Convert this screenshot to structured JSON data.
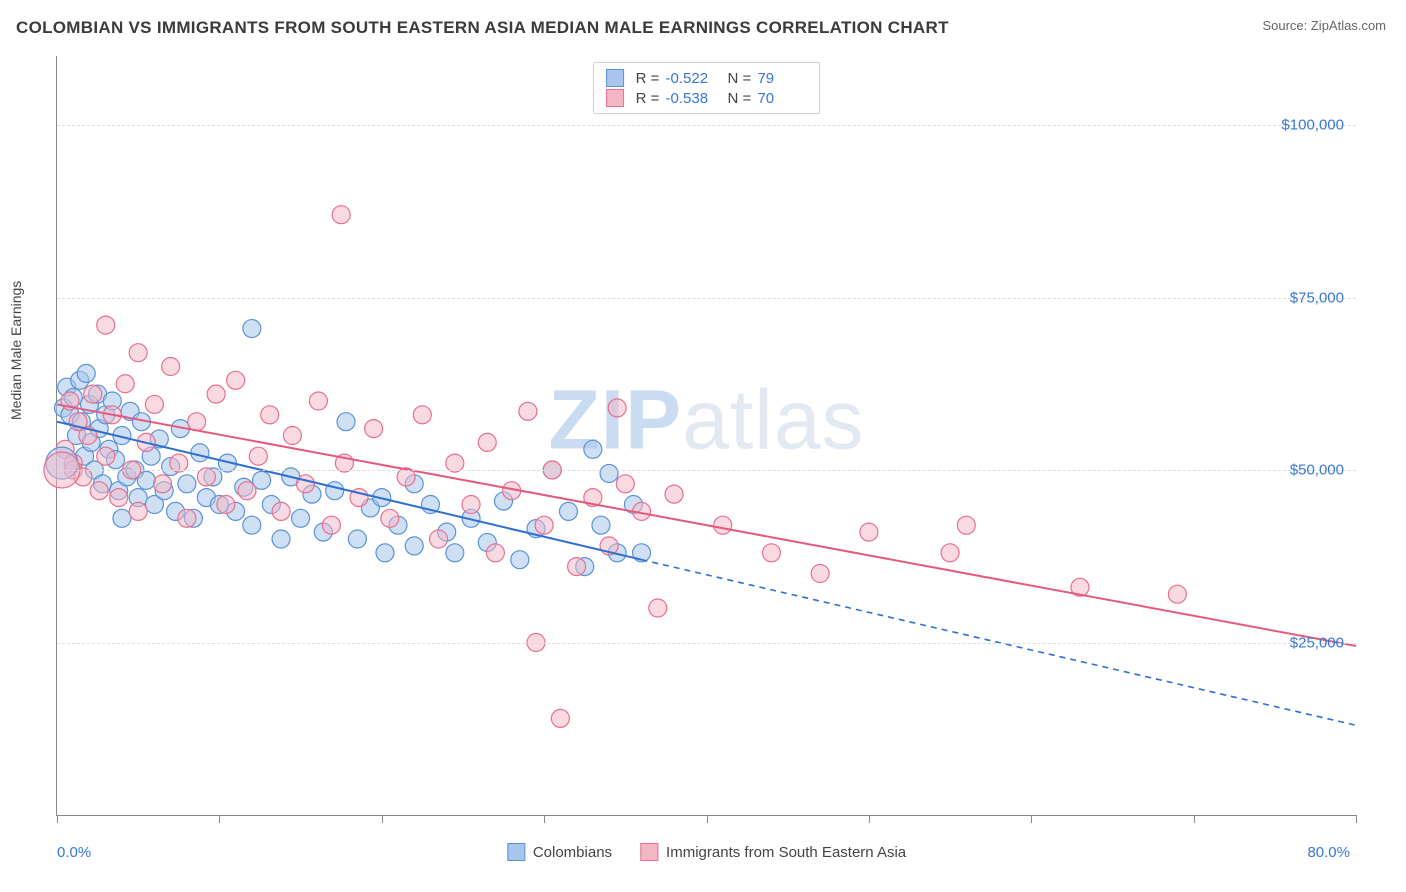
{
  "title": "COLOMBIAN VS IMMIGRANTS FROM SOUTH EASTERN ASIA MEDIAN MALE EARNINGS CORRELATION CHART",
  "source": "Source: ZipAtlas.com",
  "ylabel": "Median Male Earnings",
  "watermark_a": "ZIP",
  "watermark_b": "atlas",
  "chart": {
    "type": "scatter",
    "background_color": "#ffffff",
    "grid_color": "#dddddd",
    "axis_color": "#888888",
    "label_color": "#3876d6",
    "text_color": "#444444",
    "xlim": [
      0,
      80
    ],
    "ylim": [
      0,
      110000
    ],
    "xtick_positions": [
      0,
      10,
      20,
      30,
      40,
      50,
      60,
      70,
      80
    ],
    "xtick_labels_shown": {
      "0": "0.0%",
      "80": "80.0%"
    },
    "ytick_positions": [
      25000,
      50000,
      75000,
      100000
    ],
    "ytick_labels": [
      "$25,000",
      "$50,000",
      "$75,000",
      "$100,000"
    ],
    "marker_radius": 9,
    "marker_stroke_width": 1.2,
    "line_width": 2,
    "dash_pattern": "6 5"
  },
  "series": [
    {
      "key": "colombians",
      "label": "Colombians",
      "fill": "#a8c6ec",
      "stroke": "#5a93d8",
      "fill_opacity": 0.55,
      "line_color": "#2f6fd0",
      "R": "-0.522",
      "N": "79",
      "trend": {
        "x1": 0,
        "y1": 57000,
        "x2": 36,
        "y2": 37000,
        "x2_dash": 80,
        "y2_dash": 13000
      },
      "points": [
        [
          0.4,
          59000
        ],
        [
          0.6,
          62000
        ],
        [
          0.8,
          58000
        ],
        [
          1.0,
          60500
        ],
        [
          1.2,
          55000
        ],
        [
          1.4,
          63000
        ],
        [
          1.5,
          57000
        ],
        [
          1.7,
          52000
        ],
        [
          1.8,
          64000
        ],
        [
          2.0,
          59500
        ],
        [
          2.1,
          54000
        ],
        [
          2.3,
          50000
        ],
        [
          2.5,
          61000
        ],
        [
          2.6,
          56000
        ],
        [
          2.8,
          48000
        ],
        [
          3.0,
          58000
        ],
        [
          3.2,
          53000
        ],
        [
          3.4,
          60000
        ],
        [
          3.6,
          51500
        ],
        [
          3.8,
          47000
        ],
        [
          4.0,
          55000
        ],
        [
          4.3,
          49000
        ],
        [
          4.5,
          58500
        ],
        [
          4.8,
          50000
        ],
        [
          5.0,
          46000
        ],
        [
          5.2,
          57000
        ],
        [
          5.5,
          48500
        ],
        [
          5.8,
          52000
        ],
        [
          6.0,
          45000
        ],
        [
          6.3,
          54500
        ],
        [
          6.6,
          47000
        ],
        [
          7.0,
          50500
        ],
        [
          7.3,
          44000
        ],
        [
          7.6,
          56000
        ],
        [
          8.0,
          48000
        ],
        [
          8.4,
          43000
        ],
        [
          8.8,
          52500
        ],
        [
          9.2,
          46000
        ],
        [
          9.6,
          49000
        ],
        [
          10.0,
          45000
        ],
        [
          10.5,
          51000
        ],
        [
          11.0,
          44000
        ],
        [
          11.5,
          47500
        ],
        [
          12.0,
          70500
        ],
        [
          12.0,
          42000
        ],
        [
          12.6,
          48500
        ],
        [
          13.2,
          45000
        ],
        [
          13.8,
          40000
        ],
        [
          14.4,
          49000
        ],
        [
          15.0,
          43000
        ],
        [
          15.7,
          46500
        ],
        [
          16.4,
          41000
        ],
        [
          17.1,
          47000
        ],
        [
          17.8,
          57000
        ],
        [
          18.5,
          40000
        ],
        [
          19.3,
          44500
        ],
        [
          20.0,
          46000
        ],
        [
          20.2,
          38000
        ],
        [
          21.0,
          42000
        ],
        [
          22.0,
          48000
        ],
        [
          22.0,
          39000
        ],
        [
          23.0,
          45000
        ],
        [
          24.0,
          41000
        ],
        [
          24.5,
          38000
        ],
        [
          25.5,
          43000
        ],
        [
          26.5,
          39500
        ],
        [
          27.5,
          45500
        ],
        [
          28.5,
          37000
        ],
        [
          29.5,
          41500
        ],
        [
          30.5,
          50000
        ],
        [
          31.5,
          44000
        ],
        [
          32.5,
          36000
        ],
        [
          33.5,
          42000
        ],
        [
          34.5,
          38000
        ],
        [
          35.5,
          45000
        ],
        [
          34.0,
          49500
        ],
        [
          36.0,
          38000
        ],
        [
          33.0,
          53000
        ],
        [
          4.0,
          43000
        ]
      ]
    },
    {
      "key": "se_asia",
      "label": "Immigrants from South Eastern Asia",
      "fill": "#f3b6c5",
      "stroke": "#e8708e",
      "fill_opacity": 0.5,
      "line_color": "#e45a7c",
      "R": "-0.538",
      "N": "70",
      "trend": {
        "x1": 0,
        "y1": 59500,
        "x2": 80,
        "y2": 24500,
        "x2_dash": 80,
        "y2_dash": 24500
      },
      "points": [
        [
          0.5,
          53000
        ],
        [
          0.8,
          60000
        ],
        [
          1.0,
          51000
        ],
        [
          1.0,
          50000
        ],
        [
          1.3,
          57000
        ],
        [
          1.6,
          49000
        ],
        [
          1.9,
          55000
        ],
        [
          2.2,
          61000
        ],
        [
          2.6,
          47000
        ],
        [
          3.0,
          71000
        ],
        [
          3.0,
          52000
        ],
        [
          3.4,
          58000
        ],
        [
          3.8,
          46000
        ],
        [
          4.2,
          62500
        ],
        [
          4.6,
          50000
        ],
        [
          5.0,
          67000
        ],
        [
          5.0,
          44000
        ],
        [
          5.5,
          54000
        ],
        [
          6.0,
          59500
        ],
        [
          6.5,
          48000
        ],
        [
          7.0,
          65000
        ],
        [
          7.5,
          51000
        ],
        [
          8.0,
          43000
        ],
        [
          8.6,
          57000
        ],
        [
          9.2,
          49000
        ],
        [
          9.8,
          61000
        ],
        [
          10.4,
          45000
        ],
        [
          11.0,
          63000
        ],
        [
          11.7,
          47000
        ],
        [
          12.4,
          52000
        ],
        [
          13.1,
          58000
        ],
        [
          13.8,
          44000
        ],
        [
          14.5,
          55000
        ],
        [
          15.3,
          48000
        ],
        [
          16.1,
          60000
        ],
        [
          16.9,
          42000
        ],
        [
          17.5,
          87000
        ],
        [
          17.7,
          51000
        ],
        [
          18.6,
          46000
        ],
        [
          19.5,
          56000
        ],
        [
          20.5,
          43000
        ],
        [
          21.5,
          49000
        ],
        [
          22.5,
          58000
        ],
        [
          23.5,
          40000
        ],
        [
          24.5,
          51000
        ],
        [
          25.5,
          45000
        ],
        [
          26.5,
          54000
        ],
        [
          27.0,
          38000
        ],
        [
          28.0,
          47000
        ],
        [
          29.0,
          58500
        ],
        [
          29.5,
          25000
        ],
        [
          30.0,
          42000
        ],
        [
          31.0,
          14000
        ],
        [
          30.5,
          50000
        ],
        [
          32.0,
          36000
        ],
        [
          33.0,
          46000
        ],
        [
          34.0,
          39000
        ],
        [
          35.0,
          48000
        ],
        [
          36.0,
          44000
        ],
        [
          37.0,
          30000
        ],
        [
          38.0,
          46500
        ],
        [
          41.0,
          42000
        ],
        [
          44.0,
          38000
        ],
        [
          47.0,
          35000
        ],
        [
          50.0,
          41000
        ],
        [
          55.0,
          38000
        ],
        [
          56.0,
          42000
        ],
        [
          63.0,
          33000
        ],
        [
          69.0,
          32000
        ],
        [
          34.5,
          59000
        ]
      ]
    }
  ],
  "legend_top_labels": {
    "R": "R =",
    "N": "N ="
  },
  "big_markers": [
    {
      "series": 0,
      "x": 0.3,
      "y": 51000,
      "r": 16
    },
    {
      "series": 1,
      "x": 0.3,
      "y": 50000,
      "r": 18
    }
  ]
}
